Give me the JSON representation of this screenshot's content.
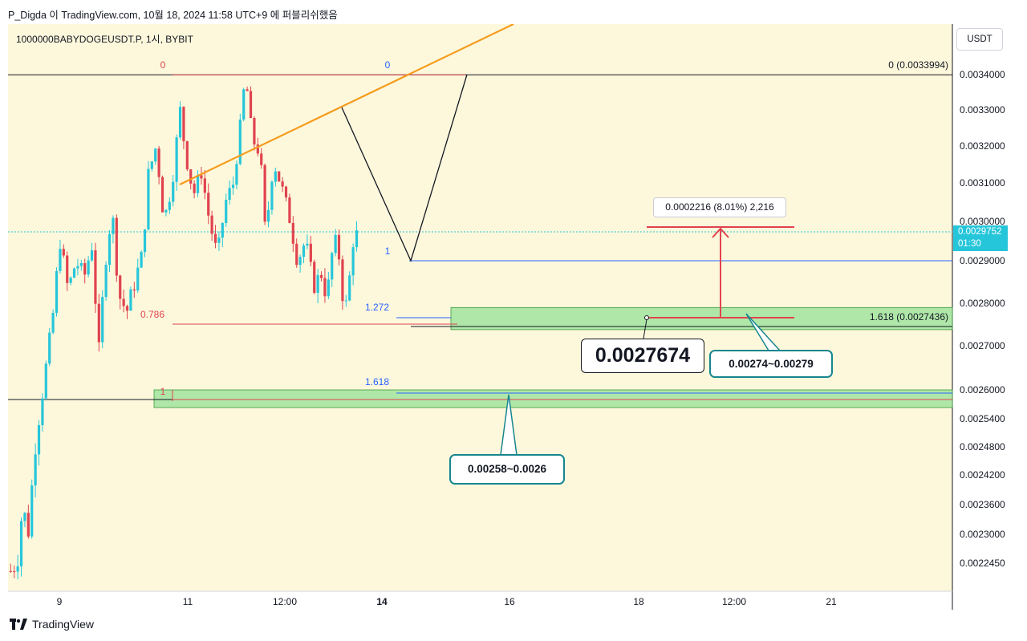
{
  "header": {
    "publisher_line": "P_Digda 이 TradingView.com, 10월 18, 2024 11:58 UTC+9 에 퍼블리쉬했음",
    "symbol_line": "1000000BABYDOGEUSDT.P, 1시, BYBIT"
  },
  "currency_unit": "USDT",
  "current_price": {
    "value": "0.0029752",
    "countdown": "01:30",
    "color": "#26c6da"
  },
  "brand": "TradingView",
  "colors": {
    "background": "#fdf8dc",
    "up_candle": "#26c6da",
    "down_candle": "#e0434f",
    "trendline": "#f59b1b",
    "fib_red": "#e0434f",
    "fib_blue": "#2962ff",
    "zone_fill": "#9be29b",
    "callout_border": "#17868f"
  },
  "chart_data": {
    "type": "candlestick",
    "timeframe": "1h",
    "y_axis": {
      "side": "right",
      "ticks": [
        "0.0034000",
        "0.0033000",
        "0.0032000",
        "0.0031000",
        "0.0030000",
        "0.0029000",
        "0.0028000",
        "0.0027000",
        "0.0026000",
        "0.0025400",
        "0.0024800",
        "0.0024200",
        "0.0023600",
        "0.0023000",
        "0.0022450"
      ]
    },
    "x_axis": {
      "ticks": [
        "9",
        "11",
        "12:00",
        "14",
        "16",
        "18",
        "12:00",
        "21"
      ],
      "bold_ticks": [
        "14"
      ]
    },
    "price_path": [
      [
        "2024-10-08 23:00",
        0.00223
      ],
      [
        "2024-10-09 04:00",
        0.00225
      ],
      [
        "2024-10-09 08:00",
        0.00236
      ],
      [
        "2024-10-09 12:00",
        0.0023
      ],
      [
        "2024-10-09 18:00",
        0.0025
      ],
      [
        "2024-10-10 00:00",
        0.00262
      ],
      [
        "2024-10-10 06:00",
        0.00275
      ],
      [
        "2024-10-10 12:00",
        0.00295
      ],
      [
        "2024-10-10 18:00",
        0.00283
      ],
      [
        "2024-10-11 00:00",
        0.0029
      ],
      [
        "2024-10-11 06:00",
        0.00286
      ],
      [
        "2024-10-11 12:00",
        0.00294
      ],
      [
        "2024-10-11 17:00",
        0.00268
      ],
      [
        "2024-10-11 22:00",
        0.0029
      ],
      [
        "2024-10-12 03:00",
        0.00303
      ],
      [
        "2024-10-12 08:00",
        0.00282
      ],
      [
        "2024-10-12 14:00",
        0.00278
      ],
      [
        "2024-10-12 20:00",
        0.00285
      ],
      [
        "2024-10-13 02:00",
        0.00292
      ],
      [
        "2024-10-13 06:00",
        0.00312
      ],
      [
        "2024-10-13 12:00",
        0.0032
      ],
      [
        "2024-10-13 18:00",
        0.003
      ],
      [
        "2024-10-14 00:00",
        0.0031
      ],
      [
        "2024-10-14 06:00",
        0.0033
      ],
      [
        "2024-10-14 10:00",
        0.00318
      ],
      [
        "2024-10-14 16:00",
        0.00307
      ],
      [
        "2024-10-14 22:00",
        0.00313
      ],
      [
        "2024-10-15 04:00",
        0.003
      ],
      [
        "2024-10-15 10:00",
        0.00291
      ],
      [
        "2024-10-15 16:00",
        0.00305
      ],
      [
        "2024-10-15 22:00",
        0.0031
      ],
      [
        "2024-10-16 03:00",
        0.00325
      ],
      [
        "2024-10-16 07:00",
        0.0034
      ],
      [
        "2024-10-16 12:00",
        0.00322
      ],
      [
        "2024-10-16 18:00",
        0.00318
      ],
      [
        "2024-10-16 22:00",
        0.00296
      ],
      [
        "2024-10-17 04:00",
        0.00316
      ],
      [
        "2024-10-17 10:00",
        0.00309
      ],
      [
        "2024-10-17 16:00",
        0.00301
      ],
      [
        "2024-10-17 22:00",
        0.0029
      ],
      [
        "2024-10-18 04:00",
        0.00295
      ],
      [
        "2024-10-18 10:00",
        0.00284
      ],
      [
        "2024-10-18 16:00",
        0.00287
      ],
      [
        "2024-10-18 20:00",
        0.00281
      ],
      [
        "2024-10-19 00:00",
        0.00292
      ],
      [
        "2024-10-19 04:00",
        0.00296
      ],
      [
        "2024-10-19 07:00",
        0.00283
      ],
      [
        "2024-10-19 11:00",
        0.00279
      ],
      [
        "2024-10-19 16:00",
        0.00296
      ],
      [
        "2024-10-19 20:00",
        0.00297
      ]
    ],
    "levels": [
      {
        "name": "fib-0-top",
        "label": "0",
        "price": 0.0033994,
        "color": "#e0434f"
      },
      {
        "name": "fib-0-right",
        "label": "0 (0.0033994)",
        "price": 0.0033994,
        "color": "#131722"
      },
      {
        "name": "fib-1-blue",
        "label": "1",
        "price": 0.0029,
        "color": "#2962ff"
      },
      {
        "name": "fib-0786",
        "label": "0.786",
        "price": 0.00278,
        "color": "#e0434f"
      },
      {
        "name": "fib-1272",
        "label": "1.272",
        "price": 0.00278,
        "color": "#2962ff"
      },
      {
        "name": "fib-1618-blue",
        "label": "1.618",
        "price": 0.0026,
        "color": "#2962ff"
      },
      {
        "name": "fib-1-red-bottom",
        "label": "1",
        "price": 0.00258,
        "color": "#e0434f"
      },
      {
        "name": "fib-1618-right",
        "label": "1.618 (0.0027436)",
        "price": 0.0027436,
        "color": "#131722"
      }
    ],
    "zones": [
      {
        "name": "upper-zone",
        "low": 0.0027436,
        "high": 0.00279
      },
      {
        "name": "lower-zone",
        "low": 0.00258,
        "high": 0.0026
      }
    ],
    "measure": {
      "label": "0.0002216 (8.01%) 2,216",
      "from": 0.0027674,
      "to": 0.002989
    }
  },
  "annotations": {
    "price_callout": "0.0027674",
    "zone_upper_callout": "0.00274~0.00279",
    "zone_lower_callout": "0.00258~0.0026"
  }
}
